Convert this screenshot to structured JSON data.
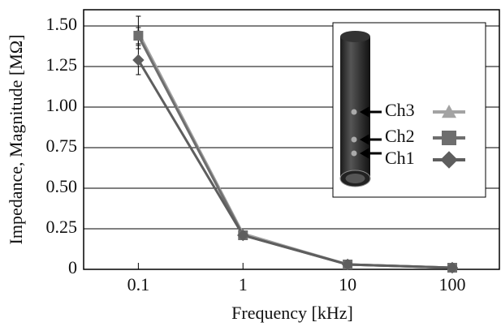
{
  "chart_data": {
    "type": "line",
    "xlabel": "Frequency [kHz]",
    "ylabel": "Impedance, Magnitude [MΩ]",
    "x": [
      0.1,
      1,
      10,
      100
    ],
    "xscale": "log",
    "xlim": [
      0.03,
      282
    ],
    "xticks": [
      0.1,
      1,
      10,
      100
    ],
    "ylim": [
      0,
      1.6
    ],
    "yticks": [
      {
        "value": 0,
        "label": "0"
      },
      {
        "value": 0.25,
        "label": "0.25"
      },
      {
        "value": 0.5,
        "label": "0.50"
      },
      {
        "value": 0.75,
        "label": "0.75"
      },
      {
        "value": 1,
        "label": "1.00"
      },
      {
        "value": 1.25,
        "label": "1.25"
      },
      {
        "value": 1.5,
        "label": "1.50"
      }
    ],
    "grid": true,
    "legend": "upper right",
    "series": [
      {
        "name": "Ch3",
        "color": "#a3a3a3",
        "marker": "triangle",
        "values": [
          1.46,
          0.22,
          0.03,
          0.01
        ],
        "errors": [
          0.1,
          0.01,
          0.005,
          0.002
        ]
      },
      {
        "name": "Ch2",
        "color": "#6e6e6e",
        "marker": "square",
        "values": [
          1.44,
          0.21,
          0.03,
          0.01
        ],
        "errors": [
          0.05,
          0.01,
          0.005,
          0.002
        ]
      },
      {
        "name": "Ch1",
        "color": "#5e5e5e",
        "marker": "diamond",
        "values": [
          1.29,
          0.21,
          0.03,
          0.01
        ],
        "errors": [
          0.09,
          0.01,
          0.005,
          0.002
        ]
      }
    ]
  }
}
